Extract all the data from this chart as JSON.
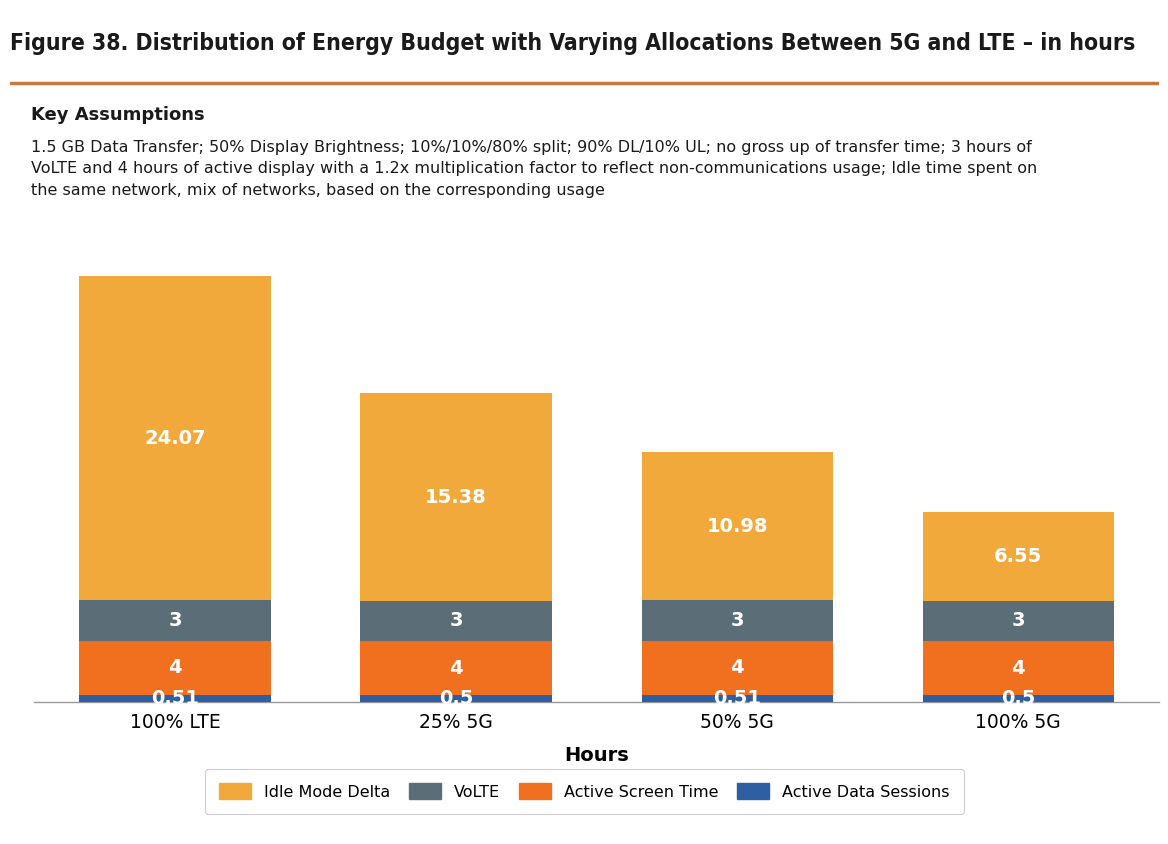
{
  "title": "Figure 38. Distribution of Energy Budget with Varying Allocations Between 5G and LTE – in hours",
  "assumptions_title": "Key Assumptions",
  "assumptions_text": "1.5 GB Data Transfer; 50% Display Brightness; 10%/10%/80% split; 90% DL/10% UL; no gross up of transfer time; 3 hours of\nVoLTE and 4 hours of active display with a 1.2x multiplication factor to reflect non-communications usage; Idle time spent on\nthe same network, mix of networks, based on the corresponding usage",
  "categories": [
    "100% LTE",
    "25% 5G",
    "50% 5G",
    "100% 5G"
  ],
  "xlabel": "Hours",
  "series": {
    "Active Data Sessions": [
      0.51,
      0.5,
      0.51,
      0.5
    ],
    "Active Screen Time": [
      4,
      4,
      4,
      4
    ],
    "VoLTE": [
      3,
      3,
      3,
      3
    ],
    "Idle Mode Delta": [
      24.07,
      15.38,
      10.98,
      6.55
    ]
  },
  "colors": {
    "Active Data Sessions": "#2E5FA3",
    "Active Screen Time": "#F07020",
    "VoLTE": "#5B6E78",
    "Idle Mode Delta": "#F2A93B"
  },
  "background_color": "#FFFFFF",
  "assumptions_bg": "#D9D9D9",
  "title_color": "#1A1A1A",
  "bar_text_color": "#FFFFFF",
  "bar_width": 0.68,
  "ylim": [
    0,
    32
  ],
  "title_underline_color": "#C87941",
  "legend_labels": [
    "Idle Mode Delta",
    "VoLTE",
    "Active Screen Time",
    "Active Data Sessions"
  ]
}
